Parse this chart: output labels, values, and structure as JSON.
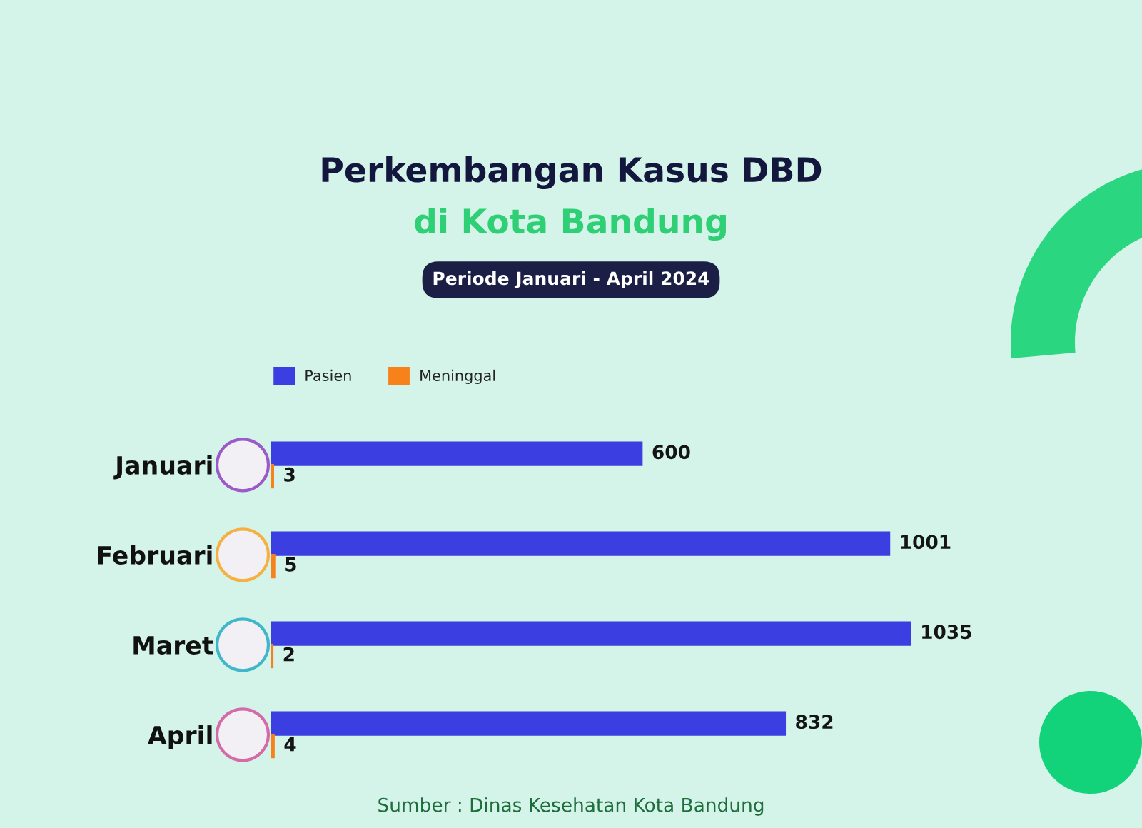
{
  "chart_data": {
    "type": "bar",
    "orientation": "horizontal",
    "title": "Perkembangan Kasus DBD\ndi Kota Bandung",
    "subtitle": "Periode Januari - April 2024",
    "categories": [
      "Januari",
      "Februari",
      "Maret",
      "April"
    ],
    "series": [
      {
        "name": "Pasien",
        "color": "#3b3ee0",
        "values": [
          600,
          1001,
          1035,
          832
        ]
      },
      {
        "name": "Meninggal",
        "color": "#f7821b",
        "values": [
          3,
          5,
          2,
          4
        ]
      }
    ],
    "tick_labels": "y",
    "data_labels": true,
    "legend": "top left",
    "annotations": [
      "Sumber : Dinas Kesehatan Kota Bandung"
    ]
  }
}
